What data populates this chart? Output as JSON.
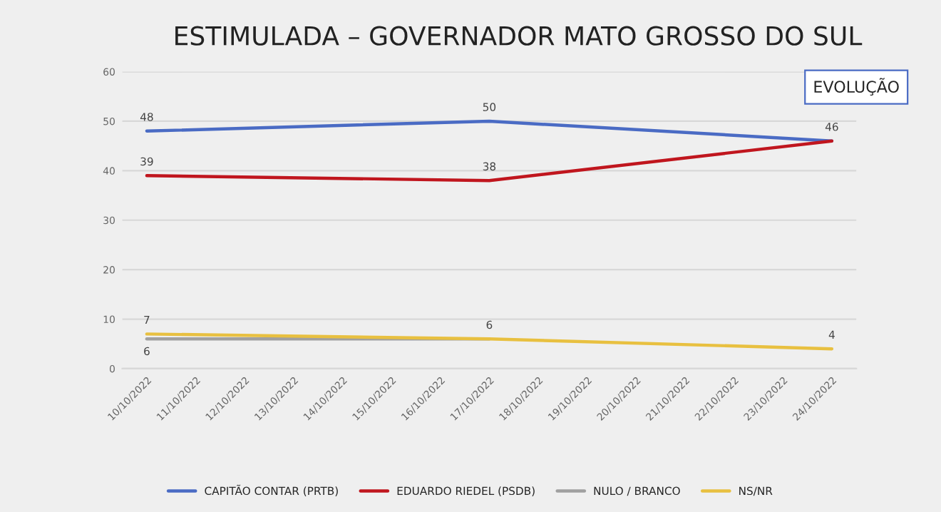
{
  "chart_data": {
    "type": "line",
    "title": "ESTIMULADA – GOVERNADOR MATO GROSSO DO SUL",
    "annotations": [
      "EVOLUÇÃO"
    ],
    "categories": [
      "10/10/2022",
      "11/10/2022",
      "12/10/2022",
      "13/10/2022",
      "14/10/2022",
      "15/10/2022",
      "16/10/2022",
      "17/10/2022",
      "18/10/2022",
      "19/10/2022",
      "20/10/2022",
      "21/10/2022",
      "22/10/2022",
      "23/10/2022",
      "24/10/2022"
    ],
    "series": [
      {
        "name": "CAPITÃO CONTAR (PRTB)",
        "color": "#4a6bc4",
        "values": [
          48,
          null,
          null,
          null,
          null,
          null,
          null,
          50,
          null,
          null,
          null,
          null,
          null,
          null,
          46
        ],
        "value_labels": [
          "48",
          null,
          null,
          null,
          null,
          null,
          null,
          "50",
          null,
          null,
          null,
          null,
          null,
          null,
          "46"
        ]
      },
      {
        "name": "EDUARDO RIEDEL (PSDB)",
        "color": "#c0161e",
        "values": [
          39,
          null,
          null,
          null,
          null,
          null,
          null,
          38,
          null,
          null,
          null,
          null,
          null,
          null,
          46
        ],
        "value_labels": [
          "39",
          null,
          null,
          null,
          null,
          null,
          null,
          "38",
          null,
          null,
          null,
          null,
          null,
          null,
          null
        ]
      },
      {
        "name": "NULO / BRANCO",
        "color": "#a0a0a0",
        "values": [
          6,
          null,
          null,
          null,
          null,
          null,
          null,
          6,
          null,
          null,
          null,
          null,
          null,
          null,
          null
        ],
        "value_labels": [
          "6",
          null,
          null,
          null,
          null,
          null,
          null,
          null,
          null,
          null,
          null,
          null,
          null,
          null,
          null
        ]
      },
      {
        "name": "NS/NR",
        "color": "#e8c040",
        "values": [
          7,
          null,
          null,
          null,
          null,
          null,
          null,
          6,
          null,
          null,
          null,
          null,
          null,
          null,
          4
        ],
        "value_labels": [
          "7",
          null,
          null,
          null,
          null,
          null,
          null,
          "6",
          null,
          null,
          null,
          null,
          null,
          null,
          "4"
        ]
      }
    ],
    "ylim": [
      0,
      60
    ],
    "yticks": [
      0,
      10,
      20,
      30,
      40,
      50,
      60
    ],
    "grid": "y",
    "legend": "bottom",
    "marker": "none",
    "line_style": "solid"
  }
}
